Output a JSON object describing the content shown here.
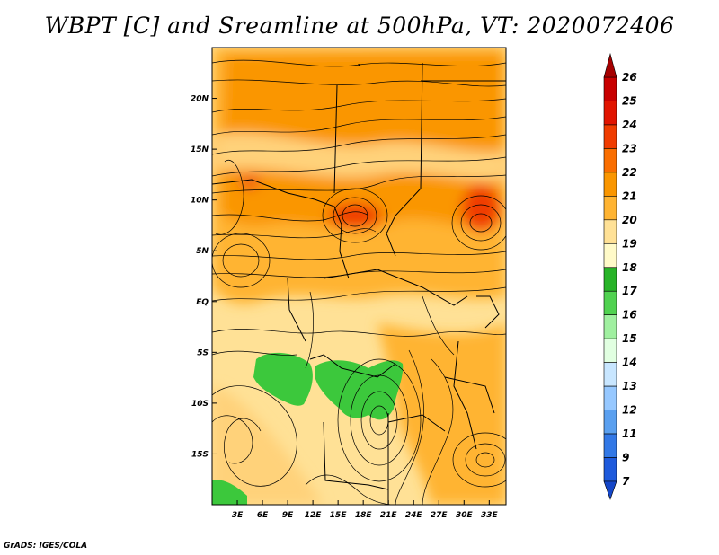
{
  "title": "WBPT [C] and Sreamline at 500hPa, VT: 2020072406",
  "footer": "GrADS: IGES/COLA",
  "map": {
    "lon_range": [
      0,
      35
    ],
    "lat_range": [
      -20,
      25
    ],
    "lon_ticks": [
      3,
      6,
      9,
      12,
      15,
      18,
      21,
      24,
      27,
      30,
      33
    ],
    "lon_tick_labels": [
      "3E",
      "6E",
      "9E",
      "12E",
      "15E",
      "18E",
      "21E",
      "24E",
      "27E",
      "30E",
      "33E"
    ],
    "lat_ticks": [
      20,
      15,
      10,
      5,
      0,
      -5,
      -10,
      -15
    ],
    "lat_tick_labels": [
      "20N",
      "15N",
      "10N",
      "5N",
      "EQ",
      "5S",
      "10S",
      "15S"
    ]
  },
  "colorbar": {
    "labels": [
      "26",
      "25",
      "24",
      "23",
      "22",
      "21",
      "20",
      "19",
      "18",
      "17",
      "16",
      "15",
      "14",
      "13",
      "12",
      "11",
      "9",
      "7"
    ],
    "colors": [
      "#a50000",
      "#c80000",
      "#e11400",
      "#f03c00",
      "#fa6e00",
      "#fa9600",
      "#ffb432",
      "#ffe196",
      "#fffac8",
      "#28b428",
      "#50d250",
      "#a0f0a0",
      "#e1ffe1",
      "#c8e6ff",
      "#96c8ff",
      "#5aa0f0",
      "#3278e6",
      "#1e5adc",
      "#1446c8"
    ]
  },
  "colors": {
    "warm_dominant": "#ffb432",
    "warm_high": "#fa9600",
    "hot_spot": "#f03c00",
    "cool_green": "#3cc83c",
    "light_yellow": "#ffe196"
  }
}
